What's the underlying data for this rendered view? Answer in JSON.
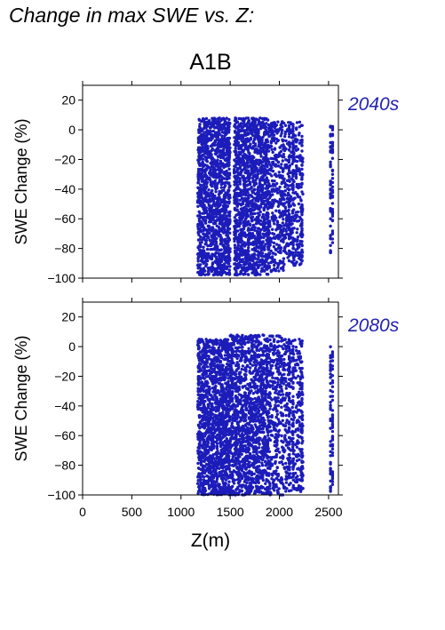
{
  "page_title": "Change in max SWE vs. Z:",
  "scenario": "A1B",
  "chart_data": {
    "type": "scatter",
    "xlabel": "Z(m)",
    "ylabel": "SWE Change (%)",
    "xlim": [
      0,
      2600
    ],
    "ylim": [
      -100,
      30
    ],
    "xticks": [
      0,
      500,
      1000,
      1500,
      2000,
      2500
    ],
    "yticks": [
      -100,
      -80,
      -60,
      -40,
      -20,
      0,
      20
    ],
    "xtick_labels": [
      "0",
      "500",
      "1000",
      "1500",
      "2000",
      "2500"
    ],
    "ytick_labels": [
      "−100",
      "−80",
      "−60",
      "−40",
      "−20",
      "0",
      "20"
    ],
    "point_color": "#1c1cba",
    "grid": false,
    "panels": [
      {
        "label": "2040s",
        "clusters": [
          {
            "x": [
              1170,
              1500
            ],
            "y": [
              -98,
              8
            ]
          },
          {
            "x": [
              1540,
              1900
            ],
            "y": [
              -98,
              8
            ]
          },
          {
            "x": [
              1900,
              2050
            ],
            "y": [
              -96,
              6
            ]
          },
          {
            "x": [
              2050,
              2240
            ],
            "y": [
              -92,
              6
            ]
          }
        ],
        "columns": [
          {
            "x": 2100,
            "y": [
              -85,
              6
            ]
          },
          {
            "x": 2140,
            "y": [
              -88,
              5
            ]
          },
          {
            "x": 2230,
            "y": [
              -90,
              -3
            ]
          },
          {
            "x": 2520,
            "y": [
              -85,
              5
            ]
          },
          {
            "x": 2540,
            "y": [
              -78,
              3
            ]
          }
        ]
      },
      {
        "label": "2080s",
        "clusters": [
          {
            "x": [
              1170,
              1500
            ],
            "y": [
              -100,
              5
            ]
          },
          {
            "x": [
              1500,
              1900
            ],
            "y": [
              -100,
              8
            ]
          },
          {
            "x": [
              1900,
              2050
            ],
            "y": [
              -100,
              8
            ]
          },
          {
            "x": [
              2050,
              2240
            ],
            "y": [
              -98,
              5
            ]
          }
        ],
        "columns": [
          {
            "x": 2100,
            "y": [
              -98,
              5
            ]
          },
          {
            "x": 2140,
            "y": [
              -98,
              4
            ]
          },
          {
            "x": 2230,
            "y": [
              -98,
              -18
            ]
          },
          {
            "x": 2520,
            "y": [
              -98,
              0
            ]
          },
          {
            "x": 2540,
            "y": [
              -95,
              -2
            ]
          }
        ]
      }
    ]
  }
}
